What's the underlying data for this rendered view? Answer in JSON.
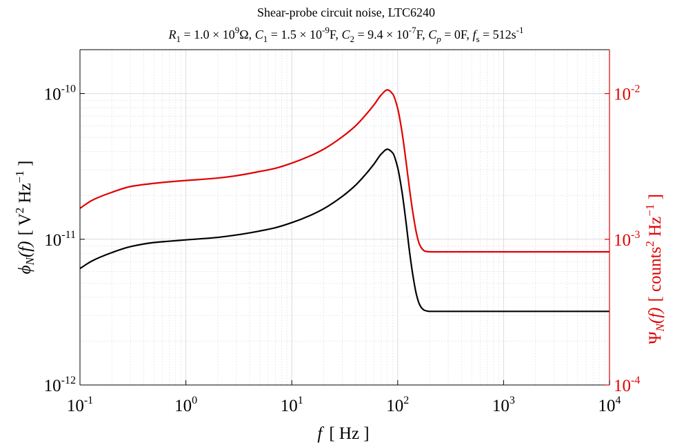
{
  "chart_data": {
    "type": "line",
    "title": "Shear-probe circuit noise, LTC6240",
    "subtitle": "R1 = 1.0 × 10^9Ω, C1 = 1.5 × 10^-9F, C2 = 9.4 × 10^-7F, Cp = 0F, fs = 512s^-1",
    "subtitle_parts": {
      "R_sym": "R",
      "R_sub": "1",
      "R_val": " = 1.0 × 10",
      "R_exp": "9",
      "R_unit": "Ω, ",
      "C1_sym": "C",
      "C1_sub": "1",
      "C1_val": " = 1.5 × 10",
      "C1_exp": "-9",
      "C1_unit": "F, ",
      "C2_sym": "C",
      "C2_sub": "2",
      "C2_val": " = 9.4 × 10",
      "C2_exp": "-7",
      "C2_unit": "F, ",
      "Cp_sym": "C",
      "Cp_sub": "p",
      "Cp_val": " = 0F, ",
      "fs_sym": "f",
      "fs_sub": "s",
      "fs_val": " = 512s",
      "fs_exp": "-1"
    },
    "xlabel": "f [ Hz ]",
    "xlabel_parts": {
      "sym": "f",
      "rest": "[ Hz ]"
    },
    "ylabel_left": "φN(f) [ V² Hz⁻¹ ]",
    "ylabel_left_parts": {
      "sym": "ϕ",
      "sub": "N",
      "arg": "(f)",
      "unit_a": "[ V",
      "unit_a_exp": "2",
      "unit_b": " Hz",
      "unit_b_exp": "−1",
      "unit_c": " ]"
    },
    "ylabel_right": "ΨN(f) [ counts² Hz⁻¹ ]",
    "ylabel_right_parts": {
      "sym": "Ψ",
      "sub": "N",
      "arg": "(f)",
      "unit_a": "[ counts",
      "unit_a_exp": "2",
      "unit_b": " Hz",
      "unit_b_exp": "−1",
      "unit_c": " ]"
    },
    "xscale": "log",
    "yscale_left": "log",
    "yscale_right": "log",
    "xlim": [
      0.1,
      10000
    ],
    "ylim_left": [
      1e-12,
      2e-10
    ],
    "ylim_right": [
      0.0001,
      0.02
    ],
    "grid": true,
    "x_ticks": [
      {
        "base": "10",
        "exp": "-1",
        "value": 0.1
      },
      {
        "base": "10",
        "exp": "0",
        "value": 1
      },
      {
        "base": "10",
        "exp": "1",
        "value": 10
      },
      {
        "base": "10",
        "exp": "2",
        "value": 100
      },
      {
        "base": "10",
        "exp": "3",
        "value": 1000
      },
      {
        "base": "10",
        "exp": "4",
        "value": 10000
      }
    ],
    "y_left_ticks": [
      {
        "base": "10",
        "exp": "-12",
        "value": 1e-12
      },
      {
        "base": "10",
        "exp": "-11",
        "value": 1e-11
      },
      {
        "base": "10",
        "exp": "-10",
        "value": 1e-10
      }
    ],
    "y_right_ticks": [
      {
        "base": "10",
        "exp": "-4",
        "value": 0.0001
      },
      {
        "base": "10",
        "exp": "-3",
        "value": 0.001
      },
      {
        "base": "10",
        "exp": "-2",
        "value": 0.01
      }
    ],
    "colors": {
      "left": "#000000",
      "right": "#e00000",
      "grid": "#dcdcdc",
      "axis": "#000000"
    },
    "series": [
      {
        "axis": "left",
        "color": "#000000",
        "x": [
          0.1,
          0.13,
          0.2,
          0.3,
          0.5,
          0.7,
          1,
          2,
          3,
          5,
          7,
          10,
          15,
          20,
          30,
          40,
          50,
          60,
          70,
          80,
          90,
          100,
          110,
          120,
          130,
          140,
          150,
          160,
          170,
          180,
          200,
          300,
          500,
          1000,
          3000,
          10000
        ],
        "y": [
          6.3e-12,
          7.1e-12,
          8.1e-12,
          8.9e-12,
          9.5e-12,
          9.7e-12,
          9.9e-12,
          1.03e-11,
          1.07e-11,
          1.14e-11,
          1.2e-11,
          1.3e-11,
          1.46e-11,
          1.62e-11,
          1.97e-11,
          2.35e-11,
          2.8e-11,
          3.3e-11,
          3.85e-11,
          4.15e-11,
          3.9e-11,
          3.1e-11,
          2.1e-11,
          1.3e-11,
          8e-12,
          5.5e-12,
          4.2e-12,
          3.6e-12,
          3.35e-12,
          3.25e-12,
          3.2e-12,
          3.2e-12,
          3.2e-12,
          3.2e-12,
          3.2e-12,
          3.2e-12
        ]
      },
      {
        "axis": "right",
        "color": "#e00000",
        "x": [
          0.1,
          0.13,
          0.2,
          0.3,
          0.5,
          0.7,
          1,
          2,
          3,
          5,
          7,
          10,
          15,
          20,
          30,
          40,
          50,
          60,
          70,
          80,
          90,
          100,
          110,
          120,
          130,
          140,
          150,
          160,
          170,
          180,
          200,
          300,
          500,
          1000,
          3000,
          10000
        ],
        "y": [
          0.00163,
          0.00185,
          0.0021,
          0.0023,
          0.00242,
          0.00248,
          0.00253,
          0.00263,
          0.00273,
          0.00292,
          0.00307,
          0.00333,
          0.00374,
          0.00415,
          0.00505,
          0.006,
          0.00715,
          0.0084,
          0.0098,
          0.0106,
          0.0099,
          0.0079,
          0.0054,
          0.0034,
          0.00215,
          0.00148,
          0.00111,
          0.00093,
          0.00086,
          0.00083,
          0.00082,
          0.00082,
          0.00082,
          0.00082,
          0.00082,
          0.00082
        ]
      }
    ]
  }
}
